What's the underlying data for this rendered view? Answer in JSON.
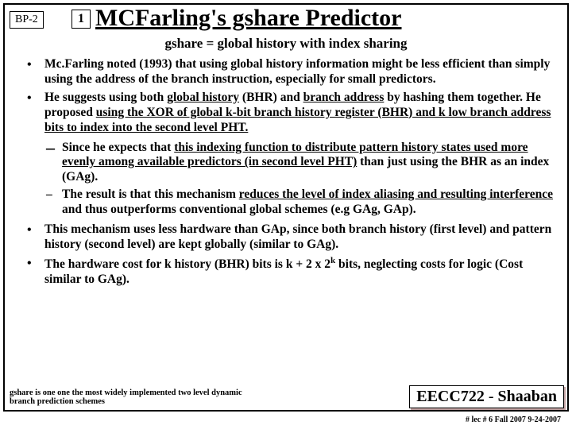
{
  "bp_label": "BP-2",
  "one_box": "1",
  "title": "MCFarling's gshare Predictor",
  "subtitle": "gshare = global history with index sharing",
  "bullet1": "Mc.Farling noted (1993) that using global history information might be less efficient than simply using the address of the branch instruction, especially for small predictors.",
  "bullet2_a": "He suggests using both ",
  "bullet2_u1": "global history",
  "bullet2_b": "  (BHR) and ",
  "bullet2_u2": "branch address",
  "bullet2_c": " by hashing them together. He proposed ",
  "bullet2_u3": "using the XOR of global k-bit branch history register (BHR) and k low branch address bits to index into the second level PHT.",
  "sub1_a": "Since he expects that ",
  "sub1_u1": "this indexing function to distribute pattern history states used more evenly among available predictors (in second level PHT)",
  "sub1_b": " than just using the BHR as an index (GAg).",
  "sub2_a": "The result is that this mechanism ",
  "sub2_u1": "reduces the level of index aliasing and resulting interference",
  "sub2_b": " and thus outperforms conventional global schemes (e.g GAg, GAp).",
  "bullet3": "This mechanism uses less hardware than GAp, since both branch history (first level) and pattern history (second level) are kept globally (similar to GAg).",
  "bullet4_a": "The hardware cost for k history (BHR) bits is  k + 2 x 2",
  "bullet4_sup": "k",
  "bullet4_b": " bits, neglecting costs for logic (Cost similar to GAg).",
  "footnote": "gshare is one one the most widely implemented two level dynamic branch prediction schemes",
  "course_a": "EECC722 ",
  "course_dash": "-",
  "course_b": " Shaaban",
  "page_footer": "#   lec # 6    Fall 2007    9-24-2007"
}
